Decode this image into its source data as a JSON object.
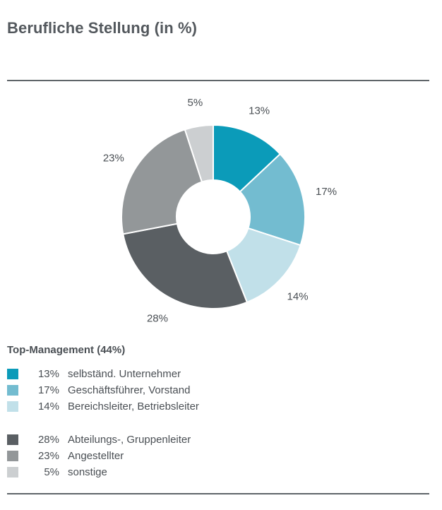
{
  "title": "Berufliche Stellung (in %)",
  "legend_heading": "Top-Management (44%)",
  "chart_data": {
    "type": "pie",
    "donut": true,
    "title": "Berufliche Stellung (in %)",
    "unit": "%",
    "slices": [
      {
        "label": "selbständ. Unternehmer",
        "value": 13,
        "value_label": "13%",
        "color": "#0b9bb9"
      },
      {
        "label": "Geschäftsführer, Vorstand",
        "value": 17,
        "value_label": "17%",
        "color": "#73bcd0"
      },
      {
        "label": "Bereichsleiter, Betriebsleiter",
        "value": 14,
        "value_label": "14%",
        "color": "#c1e0e9"
      },
      {
        "label": "Abteilungs-, Gruppenleiter",
        "value": 28,
        "value_label": "28%",
        "color": "#5a5f63"
      },
      {
        "label": "Angestellter",
        "value": 23,
        "value_label": "23%",
        "color": "#939799"
      },
      {
        "label": "sonstige",
        "value": 5,
        "value_label": "5%",
        "color": "#cccfd1"
      }
    ],
    "legend_groups": [
      {
        "heading": "Top-Management (44%)",
        "items": [
          0,
          1,
          2
        ]
      },
      {
        "heading": "",
        "items": [
          3,
          4,
          5
        ]
      }
    ],
    "start_angle": "12 o'clock",
    "direction": "clockwise",
    "legend_position": "bottom-left"
  }
}
